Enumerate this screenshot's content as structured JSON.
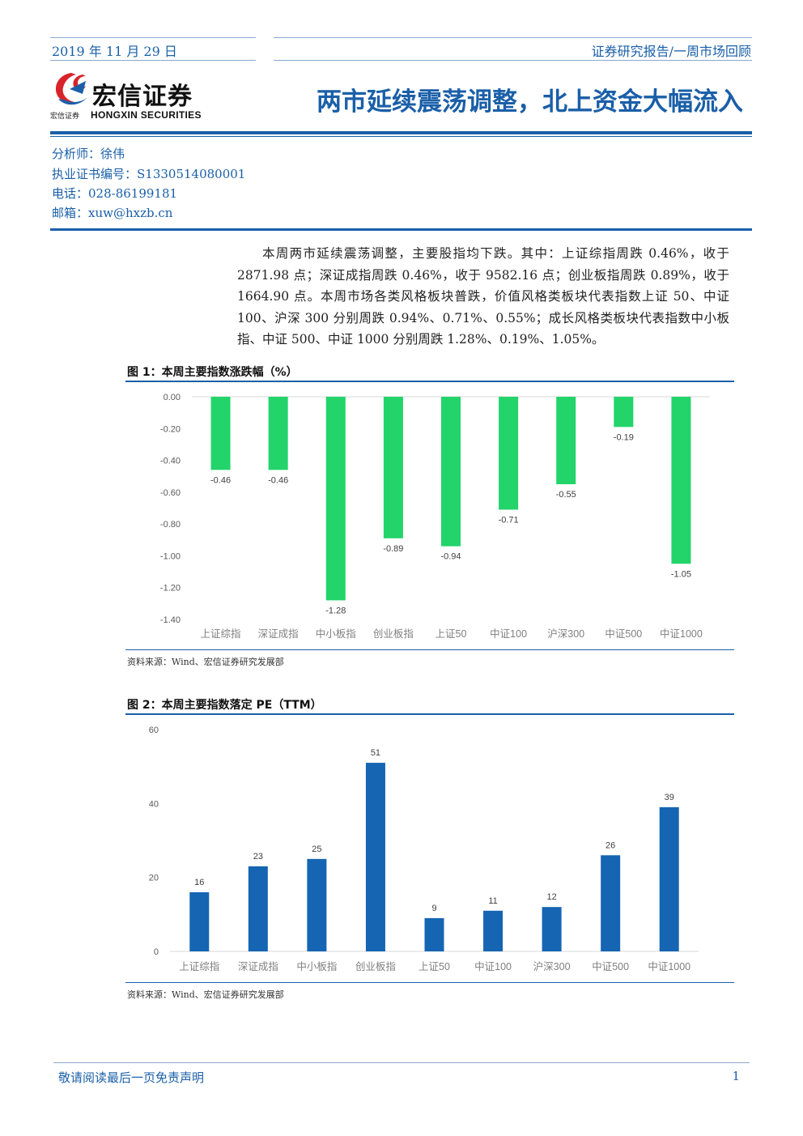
{
  "header": {
    "date": "2019 年 11 月 29 日",
    "report_type": "证券研究报告/一周市场回顾",
    "logo_cn": "宏信证券",
    "logo_sub": "宏信证券",
    "logo_en": "HONGXIN SECURITIES",
    "title": "两市延续震荡调整，北上资金大幅流入"
  },
  "analyst": {
    "name": "分析师：徐伟",
    "cert": "执业证书编号：S1330514080001",
    "phone": "电话：028-86199181",
    "email": "邮箱：xuw@hxzb.cn"
  },
  "summary": "本周两市延续震荡调整，主要股指均下跌。其中：上证综指周跌 0.46%，收于 2871.98 点；深证成指周跌 0.46%，收于 9582.16 点；创业板指周跌 0.89%，收于 1664.90 点。本周市场各类风格板块普跌，价值风格类板块代表指数上证 50、中证 100、沪深 300 分别周跌 0.94%、0.71%、0.55%；成长风格类板块代表指数中小板指、中证 500、中证 1000 分别周跌 1.28%、0.19%、1.05%。",
  "figures": {
    "fig1_title": "图 1：本周主要指数涨跌幅（%）",
    "fig1_source": "资料来源：Wind、宏信证券研究发展部",
    "fig2_title": "图 2：本周主要指数落定 PE（TTM）",
    "fig2_source": "资料来源：Wind、宏信证券研究发展部"
  },
  "chart_data": [
    {
      "type": "bar",
      "title": "本周主要指数涨跌幅（%）",
      "categories": [
        "上证综指",
        "深证成指",
        "中小板指",
        "创业板指",
        "上证50",
        "中证100",
        "沪深300",
        "中证500",
        "中证1000"
      ],
      "values": [
        -0.46,
        -0.46,
        -1.28,
        -0.89,
        -0.94,
        -0.71,
        -0.55,
        -0.19,
        -1.05
      ],
      "value_labels": [
        "-0.46",
        "-0.46",
        "-1.28",
        "-0.89",
        "-0.94",
        "-0.71",
        "-0.55",
        "-0.19",
        "-1.05"
      ],
      "yticks": [
        "0.00",
        "-0.20",
        "-0.40",
        "-0.60",
        "-0.80",
        "-1.00",
        "-1.20",
        "-1.40"
      ],
      "ylim": [
        -1.4,
        0
      ],
      "color": "#22d46a",
      "grid": false,
      "legend": false
    },
    {
      "type": "bar",
      "title": "本周主要指数落定 PE（TTM）",
      "categories": [
        "上证综指",
        "深证成指",
        "中小板指",
        "创业板指",
        "上证50",
        "中证100",
        "沪深300",
        "中证500",
        "中证1000"
      ],
      "values": [
        16,
        23,
        25,
        51,
        9,
        11,
        12,
        26,
        39
      ],
      "yticks": [
        "0",
        "20",
        "40",
        "60"
      ],
      "ylim": [
        0,
        60
      ],
      "color": "#1565b3",
      "grid": false,
      "legend": false
    }
  ],
  "footer": {
    "disclaimer": "敬请阅读最后一页免责声明",
    "page": "1"
  }
}
